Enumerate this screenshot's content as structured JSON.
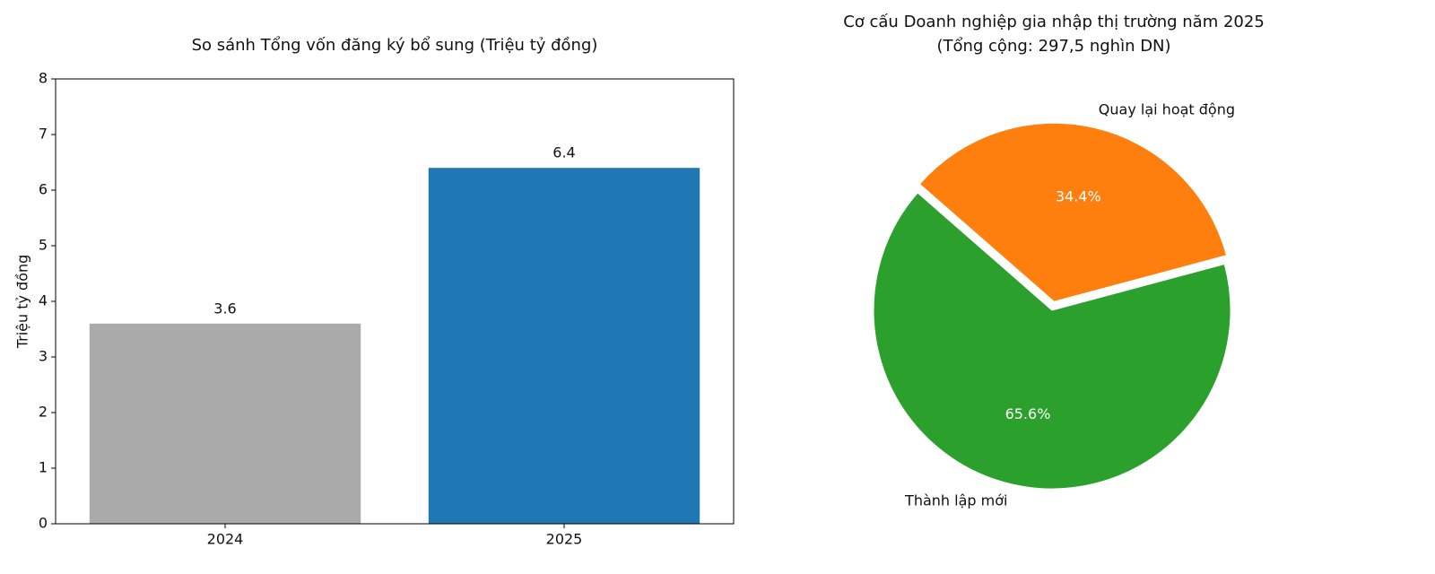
{
  "chart_data": [
    {
      "type": "bar",
      "title": "So sánh Tổng vốn đăng ký bổ sung (Triệu tỷ đồng)",
      "ylabel": "Triệu tỷ đồng",
      "categories": [
        "2024",
        "2025"
      ],
      "values": [
        3.6,
        6.4
      ],
      "colors": [
        "#aaaaaa",
        "#1f77b4"
      ],
      "ylim": [
        0,
        8
      ],
      "yticks": [
        0,
        1,
        2,
        3,
        4,
        5,
        6,
        7,
        8
      ],
      "grid": false
    },
    {
      "type": "pie",
      "title": "Cơ cấu Doanh nghiệp gia nhập thị trường năm 2025",
      "subtitle": "(Tổng cộng: 297,5 nghìn DN)",
      "categories": [
        "Quay lại hoạt động",
        "Thành lập mới"
      ],
      "values": [
        34.4,
        65.6
      ],
      "value_labels": [
        "34.4%",
        "65.6%"
      ],
      "colors": [
        "#ff7f0e",
        "#2ca02c"
      ]
    }
  ]
}
